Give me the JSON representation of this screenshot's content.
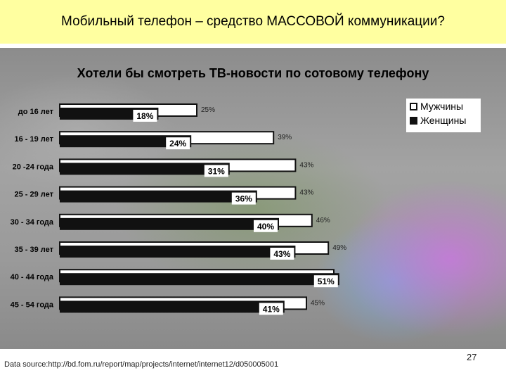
{
  "slide": {
    "header_title": "Мобильный телефон – средство МАССОВОЙ коммуникации?",
    "source": "Data source:http://bd.fom.ru/report/map/projects/internet/internet12/d050005001",
    "page_number": "27"
  },
  "colors": {
    "header_bg": "#ffffa0",
    "men_bar": "#ffffff",
    "women_bar": "#111111"
  },
  "chart_data": {
    "type": "bar",
    "title": "Хотели бы смотреть ТВ-новости по сотовому телефону",
    "categories": [
      "до 16 лет",
      "16 - 19 лет",
      "20 -24 года",
      "25 - 29 лет",
      "30 - 34 года",
      "35 - 39 лет",
      "40 - 44 года",
      "45 - 54 года"
    ],
    "series": [
      {
        "name": "Мужчины",
        "values": [
          25,
          39,
          43,
          43,
          46,
          49,
          50,
          45
        ],
        "labels": [
          "25%",
          "39%",
          "43%",
          "43%",
          "46%",
          "49%",
          "",
          "45%"
        ],
        "color": "#ffffff"
      },
      {
        "name": "Женщины",
        "values": [
          18,
          24,
          31,
          36,
          40,
          43,
          51,
          41
        ],
        "labels": [
          "18%",
          "24%",
          "31%",
          "36%",
          "40%",
          "43%",
          "51%",
          "41%"
        ],
        "color": "#111111"
      }
    ],
    "orientation": "horizontal",
    "legend_position": "top-right",
    "grid": false
  }
}
